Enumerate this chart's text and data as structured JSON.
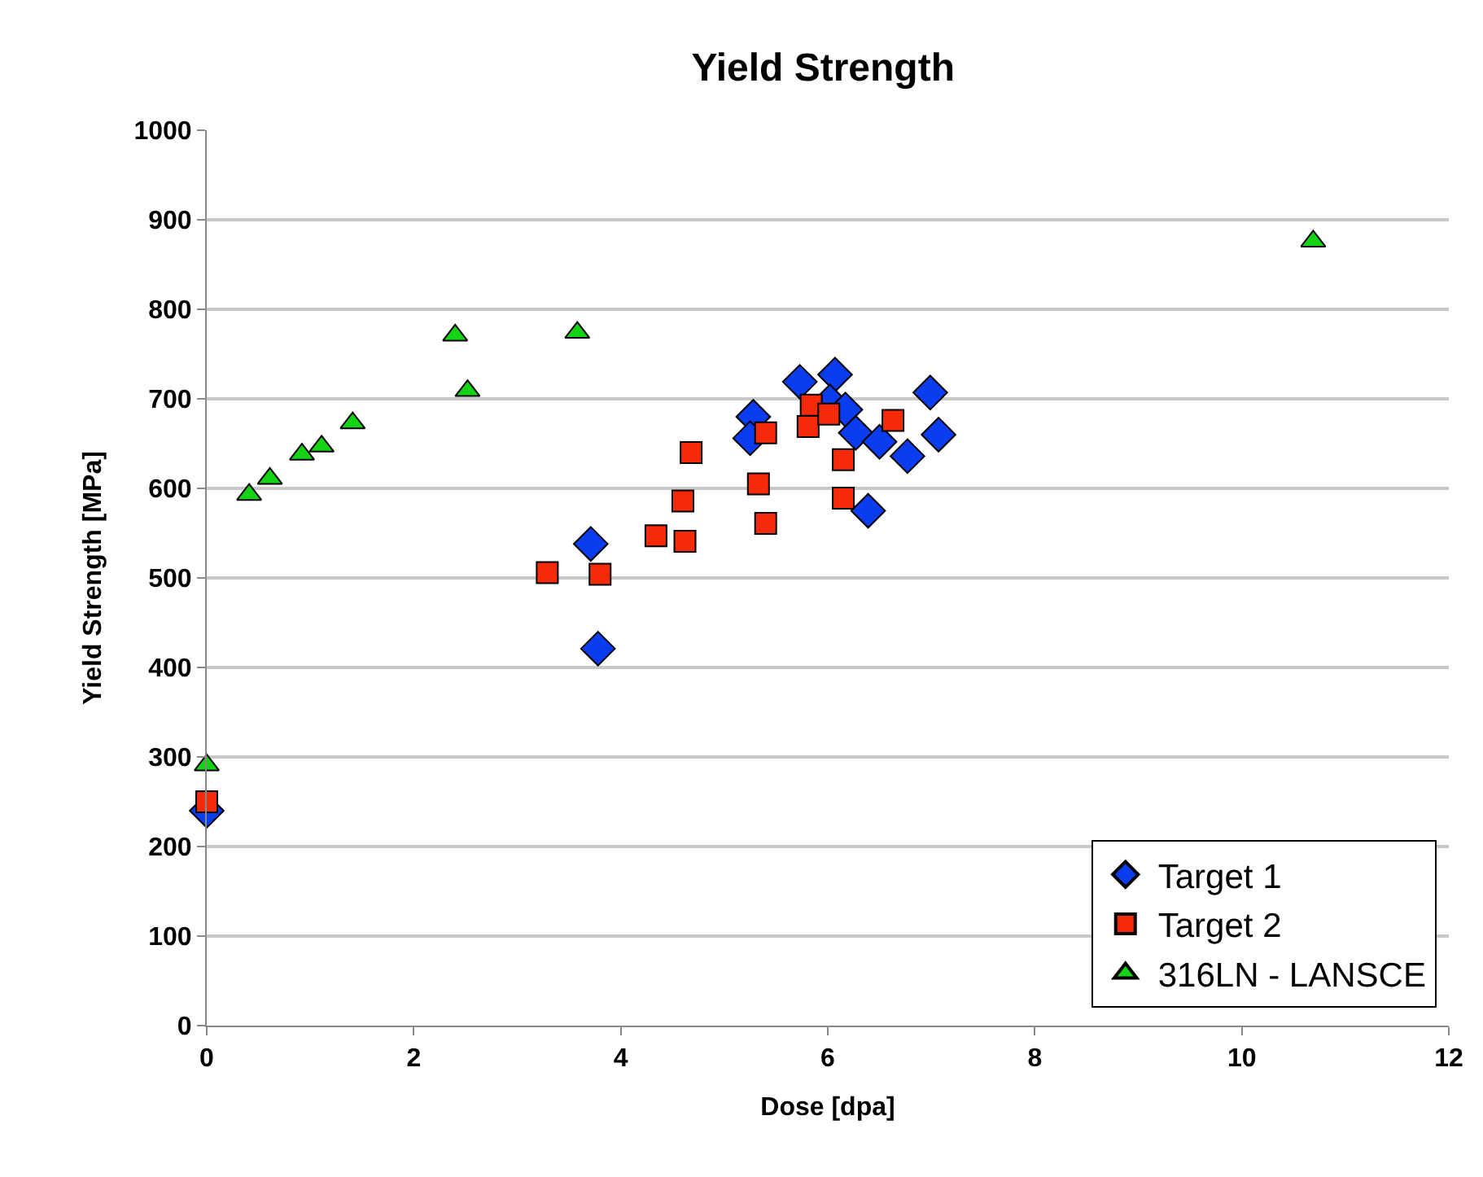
{
  "chart_data": {
    "type": "scatter",
    "title": "Yield Strength",
    "xlabel": "Dose [dpa]",
    "ylabel": "Yield Strength [MPa]",
    "xlim": [
      0,
      12
    ],
    "xticks": [
      0,
      2,
      4,
      6,
      8,
      10,
      12
    ],
    "ylim": [
      0,
      1000
    ],
    "yticks": [
      0,
      100,
      200,
      300,
      400,
      500,
      600,
      700,
      800,
      900,
      1000
    ],
    "grid": "y",
    "legend": "bottom right",
    "series": [
      {
        "name": "Target 1",
        "color": "#0a3cf0",
        "marker": "diamond",
        "x": [
          0,
          3.71,
          3.78,
          5.28,
          5.25,
          5.73,
          6.07,
          6.02,
          6.17,
          6.27,
          6.5,
          6.77,
          6.39,
          6.99,
          7.07
        ],
        "values": [
          240,
          538,
          421,
          680,
          656,
          719,
          727,
          697,
          688,
          662,
          652,
          636,
          575,
          707,
          660
        ]
      },
      {
        "name": "Target 2",
        "color": "#f52a0a",
        "marker": "square",
        "x": [
          0,
          3.29,
          3.8,
          4.34,
          4.62,
          4.6,
          4.68,
          5.33,
          5.4,
          5.4,
          5.84,
          5.81,
          6.01,
          6.15,
          6.15,
          6.63
        ],
        "values": [
          250,
          506,
          504,
          547,
          541,
          586,
          640,
          605,
          561,
          662,
          693,
          669,
          683,
          632,
          589,
          676
        ]
      },
      {
        "name": "316LN - LANSCE",
        "color": "#14d214",
        "marker": "triangle",
        "x": [
          0,
          0.41,
          0.61,
          0.92,
          1.11,
          1.41,
          2.4,
          2.52,
          3.58,
          10.69
        ],
        "values": [
          291,
          593,
          611,
          638,
          647,
          673,
          771,
          709,
          774,
          876
        ]
      }
    ]
  }
}
